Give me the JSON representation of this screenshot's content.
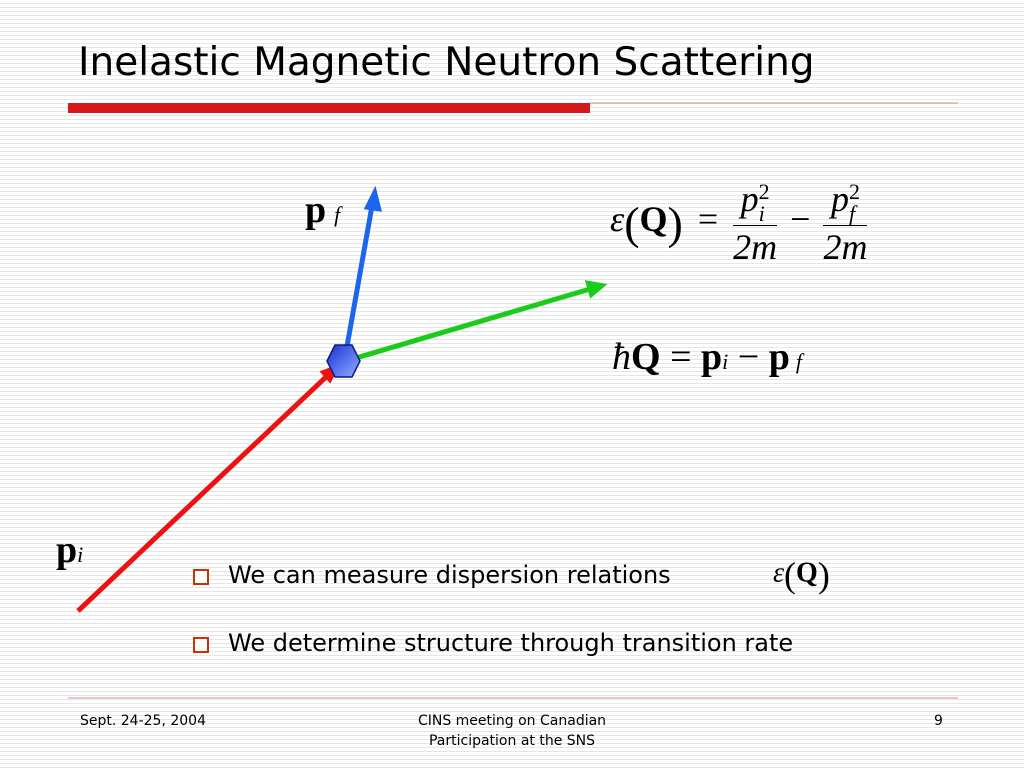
{
  "title": "Inelastic Magnetic Neutron Scattering",
  "diagram": {
    "final_momentum": {
      "base": "p",
      "sub": "f"
    },
    "initial_momentum": {
      "base": "p",
      "sub": "i"
    }
  },
  "energy_equation": {
    "symbol": "ε",
    "open": "(",
    "argument": "Q",
    "close": ")",
    "equals": "=",
    "term1": {
      "base": "p",
      "sub": "i",
      "sup": "2",
      "denominator": "2m"
    },
    "minus": "−",
    "term2": {
      "base": "p",
      "sub": "f",
      "sup": "2",
      "denominator": "2m"
    }
  },
  "momentum_equation": {
    "hbar": "ħ",
    "Q": "Q",
    "equals": "=",
    "term1": {
      "base": "p",
      "sub": "i"
    },
    "minus": "−",
    "term2": {
      "base": "p",
      "sub": "f"
    }
  },
  "bullets": [
    {
      "text": "We can measure dispersion relations",
      "symbol": "ε",
      "open": "(",
      "argument": "Q",
      "close": ")"
    },
    {
      "text": "We determine structure through transition rate"
    }
  ],
  "footer": {
    "date": "Sept. 24-25, 2004",
    "event": "CINS meeting on Canadian Participation at the SNS",
    "page": "9"
  }
}
